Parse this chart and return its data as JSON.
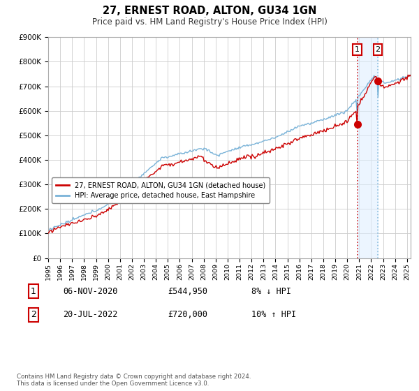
{
  "title": "27, ERNEST ROAD, ALTON, GU34 1GN",
  "subtitle": "Price paid vs. HM Land Registry's House Price Index (HPI)",
  "ylim": [
    0,
    900000
  ],
  "yticks": [
    0,
    100000,
    200000,
    300000,
    400000,
    500000,
    600000,
    700000,
    800000,
    900000
  ],
  "hpi_color": "#7ab3d8",
  "price_color": "#cc0000",
  "vline1_color": "#cc0000",
  "vline2_color": "#7ab3d8",
  "shade_color": "#ddeeff",
  "shade_alpha": 0.55,
  "legend_label_price": "27, ERNEST ROAD, ALTON, GU34 1GN (detached house)",
  "legend_label_hpi": "HPI: Average price, detached house, East Hampshire",
  "footnote": "Contains HM Land Registry data © Crown copyright and database right 2024.\nThis data is licensed under the Open Government Licence v3.0.",
  "transaction1_label": "1",
  "transaction1_date": "06-NOV-2020",
  "transaction1_price": "£544,950",
  "transaction1_note": "8% ↓ HPI",
  "transaction2_label": "2",
  "transaction2_date": "20-JUL-2022",
  "transaction2_price": "£720,000",
  "transaction2_note": "10% ↑ HPI",
  "transaction1_x": 2020.85,
  "transaction1_y": 544950,
  "transaction2_x": 2022.55,
  "transaction2_y": 720000,
  "background_color": "#ffffff",
  "grid_color": "#cccccc",
  "xlim_left": 1995.0,
  "xlim_right": 2025.3
}
